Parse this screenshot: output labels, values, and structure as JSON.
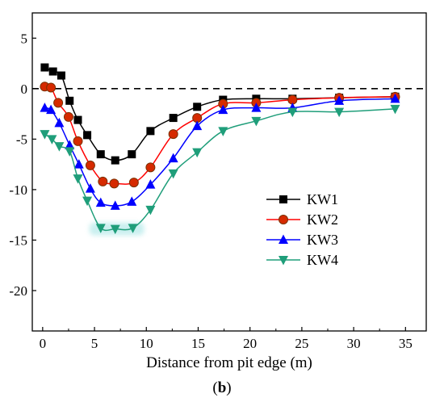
{
  "chart_data": {
    "type": "line",
    "xlabel": "Distance from pit edge (m)",
    "ylabel": "",
    "xlim": [
      -1,
      37
    ],
    "ylim": [
      -24,
      7.5
    ],
    "x_ticks": [
      0,
      5,
      10,
      15,
      20,
      25,
      30,
      35
    ],
    "y_ticks": [
      5,
      0,
      -5,
      -10,
      -15,
      -20
    ],
    "reference_line": {
      "y": 0,
      "style": "dashed"
    },
    "legend_position": "center-right",
    "series": [
      {
        "name": "KW1",
        "color": "#000000",
        "marker": "square",
        "x": [
          0.2,
          1.0,
          1.8,
          2.6,
          3.4,
          4.3,
          5.6,
          7.0,
          8.6,
          10.4,
          12.6,
          14.9,
          17.4,
          20.6,
          24.1,
          28.6,
          34.0
        ],
        "y": [
          2.1,
          1.7,
          1.3,
          -1.2,
          -3.1,
          -4.6,
          -6.5,
          -7.1,
          -6.5,
          -4.2,
          -2.9,
          -1.8,
          -1.1,
          -1.0,
          -1.0,
          -0.9,
          -0.8
        ]
      },
      {
        "name": "KW2",
        "color": "#ff0000",
        "marker": "circle",
        "x": [
          0.2,
          0.8,
          1.5,
          2.5,
          3.4,
          4.6,
          5.8,
          6.9,
          8.8,
          10.4,
          12.6,
          14.9,
          17.4,
          20.6,
          24.1,
          28.6,
          34.0
        ],
        "y": [
          0.2,
          0.1,
          -1.4,
          -2.8,
          -5.2,
          -7.6,
          -9.2,
          -9.4,
          -9.3,
          -7.8,
          -4.5,
          -2.9,
          -1.5,
          -1.4,
          -1.1,
          -0.9,
          -0.8
        ]
      },
      {
        "name": "KW3",
        "color": "#0000ff",
        "marker": "triangle-up",
        "x": [
          0.2,
          0.8,
          1.6,
          2.6,
          3.5,
          4.6,
          5.6,
          7.0,
          8.6,
          10.4,
          12.6,
          14.9,
          17.4,
          20.6,
          24.1,
          28.6,
          34.0
        ],
        "y": [
          -1.9,
          -2.1,
          -3.4,
          -5.6,
          -7.5,
          -9.9,
          -11.3,
          -11.6,
          -11.2,
          -9.5,
          -6.9,
          -3.7,
          -2.1,
          -1.9,
          -1.9,
          -1.2,
          -1.0
        ]
      },
      {
        "name": "KW4",
        "color": "#1f9e7a",
        "marker": "triangle-down",
        "x": [
          0.2,
          0.9,
          1.6,
          2.6,
          3.4,
          4.3,
          5.6,
          7.0,
          8.7,
          10.4,
          12.6,
          14.9,
          17.4,
          20.6,
          24.1,
          28.6,
          34.0
        ],
        "y": [
          -4.5,
          -5.0,
          -5.7,
          -6.2,
          -8.9,
          -11.1,
          -13.8,
          -13.9,
          -13.8,
          -12.0,
          -8.4,
          -6.3,
          -4.2,
          -3.2,
          -2.3,
          -2.3,
          -2.0
        ]
      }
    ]
  },
  "caption": "b"
}
